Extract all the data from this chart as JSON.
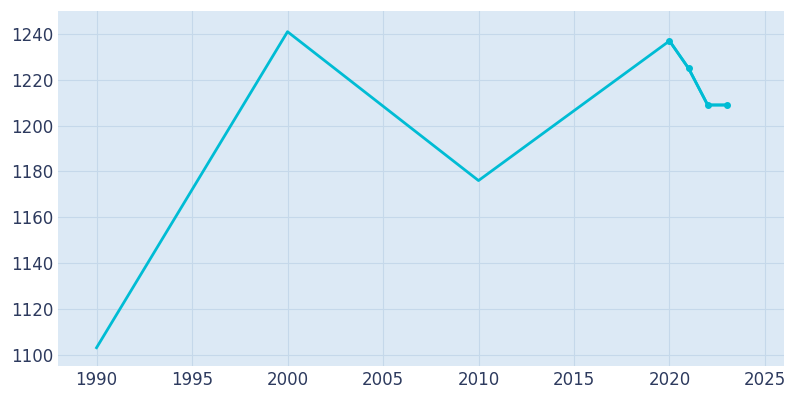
{
  "years": [
    1990,
    2000,
    2010,
    2020,
    2021,
    2022,
    2023
  ],
  "population": [
    1103,
    1241,
    1176,
    1237,
    1225,
    1209,
    1209
  ],
  "line_color": "#00bcd4",
  "marker_years": [
    2020,
    2021,
    2022,
    2023
  ],
  "marker_population": [
    1237,
    1225,
    1209,
    1209
  ],
  "fig_bg_color": "#ffffff",
  "plot_bg_color": "#dce9f5",
  "xlim": [
    1988,
    2026
  ],
  "ylim": [
    1095,
    1250
  ],
  "xticks": [
    1990,
    1995,
    2000,
    2005,
    2010,
    2015,
    2020,
    2025
  ],
  "yticks": [
    1100,
    1120,
    1140,
    1160,
    1180,
    1200,
    1220,
    1240
  ],
  "grid_color": "#c5d8ea",
  "tick_label_color": "#2d3a5e",
  "tick_fontsize": 12,
  "line_width": 2.0,
  "marker_size": 4
}
